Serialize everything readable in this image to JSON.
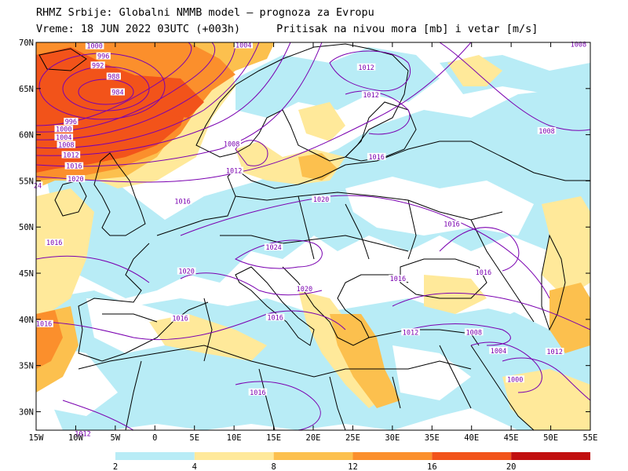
{
  "header": {
    "line1": "RHMZ Srbije: Globalni NMMB model — prognoza za Evropu",
    "line2_left": "Vreme: 18 JUN 2022 03UTC (+003h)",
    "line2_right": "Pritisak na nivou mora [mb] i vetar [m/s]"
  },
  "lat_labels": [
    "70N",
    "65N",
    "60N",
    "55N",
    "50N",
    "45N",
    "40N",
    "35N",
    "30N"
  ],
  "lon_labels": [
    "15W",
    "10W",
    "5W",
    "0",
    "5E",
    "10E",
    "15E",
    "20E",
    "25E",
    "30E",
    "35E",
    "40E",
    "45E",
    "50E",
    "55E"
  ],
  "isobar_labels": [
    {
      "text": "1000",
      "lon": -7.6,
      "lat": 69.6
    },
    {
      "text": "996",
      "lon": -6.5,
      "lat": 68.5
    },
    {
      "text": "992",
      "lon": -7.2,
      "lat": 67.5
    },
    {
      "text": "988",
      "lon": -5.2,
      "lat": 66.3
    },
    {
      "text": "984",
      "lon": -4.7,
      "lat": 64.6
    },
    {
      "text": "996",
      "lon": -10.6,
      "lat": 61.4
    },
    {
      "text": "1000",
      "lon": -11.5,
      "lat": 60.6
    },
    {
      "text": "1004",
      "lon": -11.5,
      "lat": 59.7
    },
    {
      "text": "1008",
      "lon": -11.2,
      "lat": 58.9
    },
    {
      "text": "1012",
      "lon": -10.6,
      "lat": 57.8
    },
    {
      "text": "1016",
      "lon": -10.2,
      "lat": 56.6
    },
    {
      "text": "1020",
      "lon": -10,
      "lat": 55.2
    },
    {
      "text": "24",
      "lon": -14.8,
      "lat": 54.5
    },
    {
      "text": "1004",
      "lon": 11.2,
      "lat": 69.7
    },
    {
      "text": "1008",
      "lon": 53.5,
      "lat": 69.8
    },
    {
      "text": "1012",
      "lon": 26.7,
      "lat": 67.3
    },
    {
      "text": "1012",
      "lon": 27.3,
      "lat": 64.3
    },
    {
      "text": "1008",
      "lon": 9.7,
      "lat": 59
    },
    {
      "text": "1012",
      "lon": 10,
      "lat": 56.1
    },
    {
      "text": "1016",
      "lon": 28,
      "lat": 57.6
    },
    {
      "text": "1008",
      "lon": 49.5,
      "lat": 60.4
    },
    {
      "text": "1020",
      "lon": 21,
      "lat": 53
    },
    {
      "text": "1016",
      "lon": 3.5,
      "lat": 52.8
    },
    {
      "text": "1016",
      "lon": 37.5,
      "lat": 50.3
    },
    {
      "text": "1024",
      "lon": 15,
      "lat": 47.8
    },
    {
      "text": "1016",
      "lon": -12.7,
      "lat": 48.3
    },
    {
      "text": "1020",
      "lon": 4,
      "lat": 45.2
    },
    {
      "text": "1020",
      "lon": 18.9,
      "lat": 43.3
    },
    {
      "text": "1016",
      "lon": 30.7,
      "lat": 44.4
    },
    {
      "text": "1016",
      "lon": 41.5,
      "lat": 45.1
    },
    {
      "text": "1016",
      "lon": -14,
      "lat": 39.5
    },
    {
      "text": "1016",
      "lon": 3.2,
      "lat": 40.1
    },
    {
      "text": "1016",
      "lon": 15.2,
      "lat": 40.2
    },
    {
      "text": "1012",
      "lon": 32.3,
      "lat": 38.6
    },
    {
      "text": "1008",
      "lon": 40.3,
      "lat": 38.6
    },
    {
      "text": "1004",
      "lon": 43.4,
      "lat": 36.6
    },
    {
      "text": "1012",
      "lon": 50.5,
      "lat": 36.5
    },
    {
      "text": "1016",
      "lon": 13,
      "lat": 32.1
    },
    {
      "text": "1000",
      "lon": 45.5,
      "lat": 33.5
    },
    {
      "text": "1012",
      "lon": -9.1,
      "lat": 27.6
    }
  ],
  "legend": {
    "ticks": [
      "2",
      "4",
      "8",
      "12",
      "16",
      "20"
    ],
    "colors": [
      "#b8ecf6",
      "#ffe99a",
      "#fcc04e",
      "#fb8f2c",
      "#f2531a",
      "#c10f0f"
    ]
  }
}
